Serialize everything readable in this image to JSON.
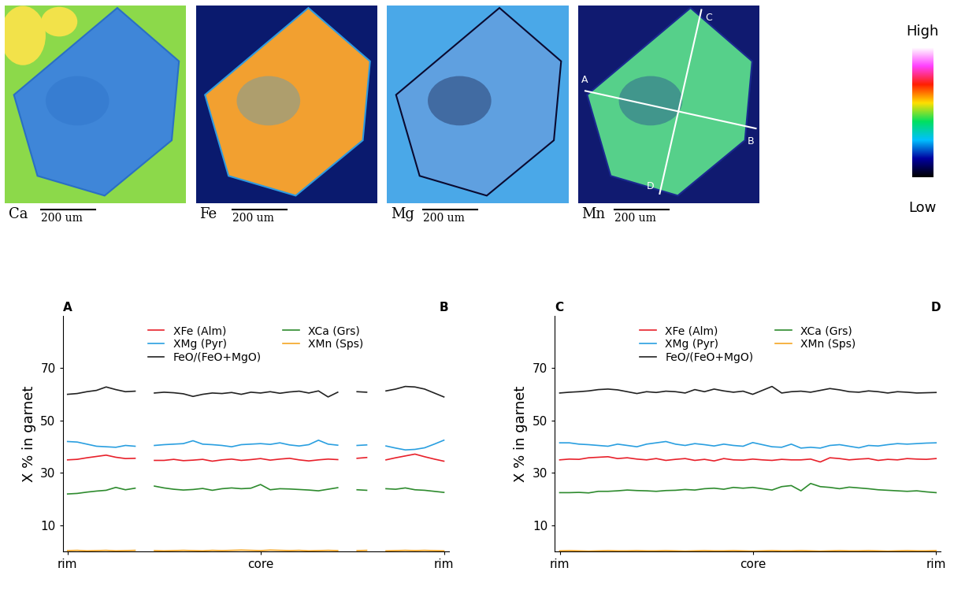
{
  "element_maps": {
    "panels": [
      {
        "element": "Ca",
        "scale_bar": "200 um"
      },
      {
        "element": "Fe",
        "scale_bar": "200 um"
      },
      {
        "element": "Mg",
        "scale_bar": "200 um"
      },
      {
        "element": "Mn",
        "scale_bar": "200 um"
      }
    ],
    "colorbar": {
      "high": "High",
      "low": "Low"
    },
    "profile_lines": [
      [
        "A",
        "B"
      ],
      [
        "C",
        "D"
      ]
    ]
  },
  "chart_data": [
    {
      "type": "line",
      "annotations": [
        "A",
        "B"
      ],
      "ylabel": "X % in garnet",
      "categories": [
        "rim",
        null,
        null,
        null,
        null,
        null,
        null,
        null,
        null,
        null,
        null,
        null,
        null,
        null,
        null,
        null,
        null,
        null,
        null,
        null,
        "core",
        null,
        null,
        null,
        null,
        null,
        null,
        null,
        null,
        null,
        null,
        null,
        null,
        null,
        null,
        null,
        null,
        null,
        null,
        "rim"
      ],
      "ylim": [
        0,
        90
      ],
      "yticks": [
        10,
        30,
        50,
        70
      ],
      "legend": "upper center",
      "series": [
        {
          "name": "XFe (Alm)",
          "color": "#e8212b",
          "values": [
            35,
            35.2,
            35.8,
            36.3,
            36.8,
            36,
            35.5,
            35.6,
            null,
            34.8,
            34.8,
            35.2,
            34.7,
            34.9,
            35.2,
            34.5,
            35,
            35.3,
            34.8,
            35.1,
            35.5,
            34.9,
            35.3,
            35.6,
            35,
            34.6,
            35,
            35.3,
            35.1,
            null,
            35.6,
            35.9,
            null,
            35,
            35.8,
            36.5,
            37.2,
            36.2,
            35.3,
            34.5
          ]
        },
        {
          "name": "XMg (Pyr)",
          "color": "#2a9fe0",
          "values": [
            42,
            41.8,
            41,
            40.2,
            40,
            39.8,
            40.5,
            40.2,
            null,
            40.5,
            40.8,
            41,
            41.2,
            42.3,
            41,
            40.8,
            40.5,
            40,
            40.8,
            41,
            41.2,
            40.9,
            41.5,
            40.7,
            40.3,
            40.8,
            42.5,
            41,
            40.6,
            null,
            40.5,
            40.7,
            null,
            40.3,
            39.5,
            38.8,
            39,
            39.6,
            41,
            42.5
          ]
        },
        {
          "name": "FeO/(FeO+MgO)",
          "color": "#222222",
          "values": [
            60,
            60.3,
            61,
            61.5,
            62.8,
            61.8,
            61,
            61.2,
            null,
            60.5,
            60.8,
            60.6,
            60.2,
            59.2,
            60,
            60.5,
            60.3,
            60.7,
            60,
            60.8,
            60.5,
            61,
            60.4,
            60.9,
            61.2,
            60.5,
            61.3,
            59,
            60.8,
            null,
            61,
            60.8,
            null,
            61.3,
            62,
            63,
            62.8,
            62,
            60.5,
            59
          ]
        },
        {
          "name": "XCa (Grs)",
          "color": "#2e8b2e",
          "values": [
            22,
            22.2,
            22.7,
            23.1,
            23.4,
            24.5,
            23.6,
            24.2,
            null,
            25,
            24.3,
            23.8,
            23.5,
            23.7,
            24.1,
            23.4,
            24,
            24.3,
            24,
            24.2,
            25.6,
            23.6,
            24,
            23.9,
            23.7,
            23.5,
            23.2,
            23.8,
            24.4,
            null,
            23.6,
            23.4,
            null,
            24,
            23.8,
            24.3,
            23.6,
            23.4,
            23,
            22.6
          ]
        },
        {
          "name": "XMn (Sps)",
          "color": "#f5a623",
          "values": [
            0.4,
            0.5,
            0.3,
            0.4,
            0.5,
            0.3,
            0.4,
            0.5,
            null,
            0.4,
            0.3,
            0.4,
            0.5,
            0.4,
            0.3,
            0.5,
            0.4,
            0.5,
            0.6,
            0.5,
            0.4,
            0.6,
            0.5,
            0.4,
            0.5,
            0.3,
            0.4,
            0.5,
            0.4,
            null,
            0.4,
            0.5,
            null,
            0.3,
            0.4,
            0.5,
            0.4,
            0.5,
            0.4,
            0.3
          ]
        }
      ]
    },
    {
      "type": "line",
      "annotations": [
        "C",
        "D"
      ],
      "ylabel": "X % in garnet",
      "categories": [
        "rim",
        null,
        null,
        null,
        null,
        null,
        null,
        null,
        null,
        null,
        null,
        null,
        null,
        null,
        null,
        null,
        null,
        null,
        null,
        null,
        "core",
        null,
        null,
        null,
        null,
        null,
        null,
        null,
        null,
        null,
        null,
        null,
        null,
        null,
        null,
        null,
        null,
        null,
        null,
        "rim"
      ],
      "ylim": [
        0,
        90
      ],
      "yticks": [
        10,
        30,
        50,
        70
      ],
      "legend": "upper center",
      "series": [
        {
          "name": "XFe (Alm)",
          "color": "#e8212b",
          "values": [
            35,
            35.3,
            35.2,
            35.8,
            36,
            36.2,
            35.5,
            35.8,
            35.3,
            35,
            35.5,
            34.8,
            35.2,
            35.5,
            34.8,
            35.2,
            34.6,
            35.5,
            35,
            34.9,
            35.3,
            35,
            34.8,
            35.2,
            35,
            35,
            35.3,
            34.2,
            35.8,
            35.5,
            35,
            35.3,
            35.5,
            34.8,
            35.2,
            35,
            35.5,
            35.3,
            35.2,
            35.5
          ]
        },
        {
          "name": "XMg (Pyr)",
          "color": "#2a9fe0",
          "values": [
            41.5,
            41.5,
            41,
            40.8,
            40.5,
            40.2,
            41,
            40.5,
            40,
            41,
            41.5,
            42,
            41,
            40.5,
            41.2,
            40.8,
            40.3,
            41,
            40.5,
            40.2,
            41.6,
            40.8,
            40,
            39.8,
            41,
            39.5,
            39.8,
            39.5,
            40.5,
            40.8,
            40.2,
            39.6,
            40.5,
            40.3,
            40.8,
            41.2,
            41,
            41.2,
            41.4,
            41.5
          ]
        },
        {
          "name": "FeO/(FeO+MgO)",
          "color": "#222222",
          "values": [
            60.5,
            60.8,
            61,
            61.3,
            61.8,
            62,
            61.7,
            61,
            60.3,
            61,
            60.7,
            61.2,
            61,
            60.5,
            61.8,
            61,
            62,
            61.3,
            60.8,
            61.2,
            60,
            61.5,
            63,
            60.5,
            61,
            61.2,
            60.8,
            61.5,
            62.2,
            61.7,
            61,
            60.8,
            61.3,
            61,
            60.5,
            61,
            60.8,
            60.5,
            60.6,
            60.7
          ]
        },
        {
          "name": "XCa (Grs)",
          "color": "#2e8b2e",
          "values": [
            22.5,
            22.5,
            22.6,
            22.4,
            23,
            23,
            23.2,
            23.5,
            23.3,
            23.2,
            23,
            23.3,
            23.4,
            23.7,
            23.5,
            24,
            24.2,
            23.8,
            24.5,
            24.2,
            24.5,
            24,
            23.5,
            24.8,
            25.2,
            23.2,
            26,
            24.8,
            24.5,
            24,
            24.6,
            24.3,
            24,
            23.6,
            23.4,
            23.2,
            23,
            23.2,
            22.8,
            22.5
          ]
        },
        {
          "name": "XMn (Sps)",
          "color": "#f5a623",
          "values": [
            0.3,
            0.4,
            0.3,
            0.2,
            0.3,
            0.4,
            0.3,
            0.3,
            0.4,
            0.3,
            0.3,
            0.4,
            0.3,
            0.2,
            0.3,
            0.4,
            0.3,
            0.3,
            0.4,
            0.3,
            0.2,
            0.3,
            0.4,
            0.3,
            0.3,
            0.4,
            0.3,
            0.2,
            0.3,
            0.4,
            0.3,
            0.3,
            0.4,
            0.3,
            0.2,
            0.3,
            0.4,
            0.3,
            0.3,
            0.4
          ]
        }
      ]
    }
  ]
}
